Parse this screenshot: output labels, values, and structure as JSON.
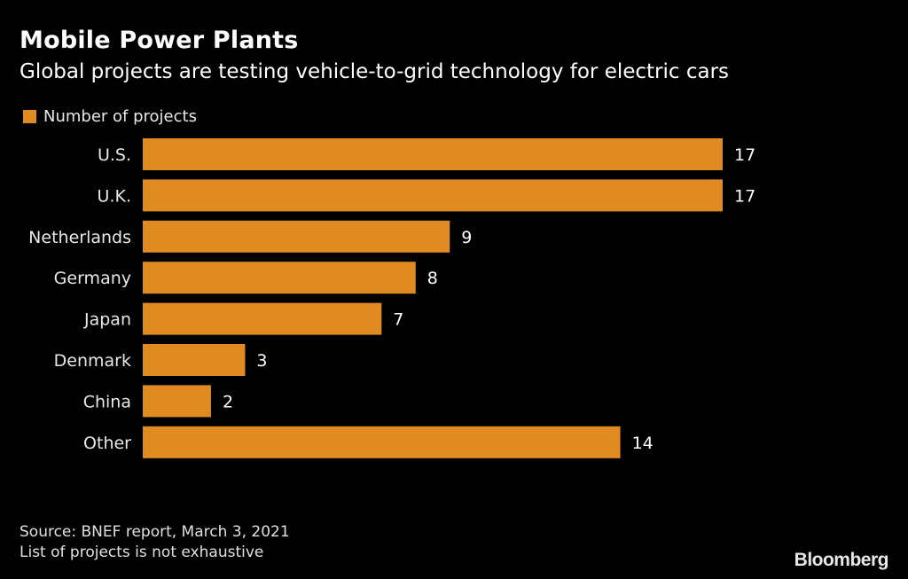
{
  "header": {
    "title": "Mobile Power Plants",
    "subtitle": "Global projects are testing vehicle-to-grid technology for electric cars"
  },
  "footer": {
    "source": "Source: BNEF report, March 3, 2021",
    "note": "List of projects is not exhaustive",
    "logo": "Bloomberg"
  },
  "chart_data": {
    "type": "bar",
    "orientation": "horizontal",
    "title": "Mobile Power Plants",
    "subtitle": "Global projects are testing vehicle-to-grid technology for electric cars",
    "xlabel": "",
    "ylabel": "",
    "categories": [
      "U.S.",
      "U.K.",
      "Netherlands",
      "Germany",
      "Japan",
      "Denmark",
      "China",
      "Other"
    ],
    "series": [
      {
        "name": "Number of projects",
        "color": "#e08a22",
        "values": [
          17,
          17,
          9,
          8,
          7,
          3,
          2,
          14
        ]
      }
    ],
    "xlim": [
      0,
      17
    ],
    "grid": false,
    "legend": "top-left",
    "data_labels": true
  }
}
